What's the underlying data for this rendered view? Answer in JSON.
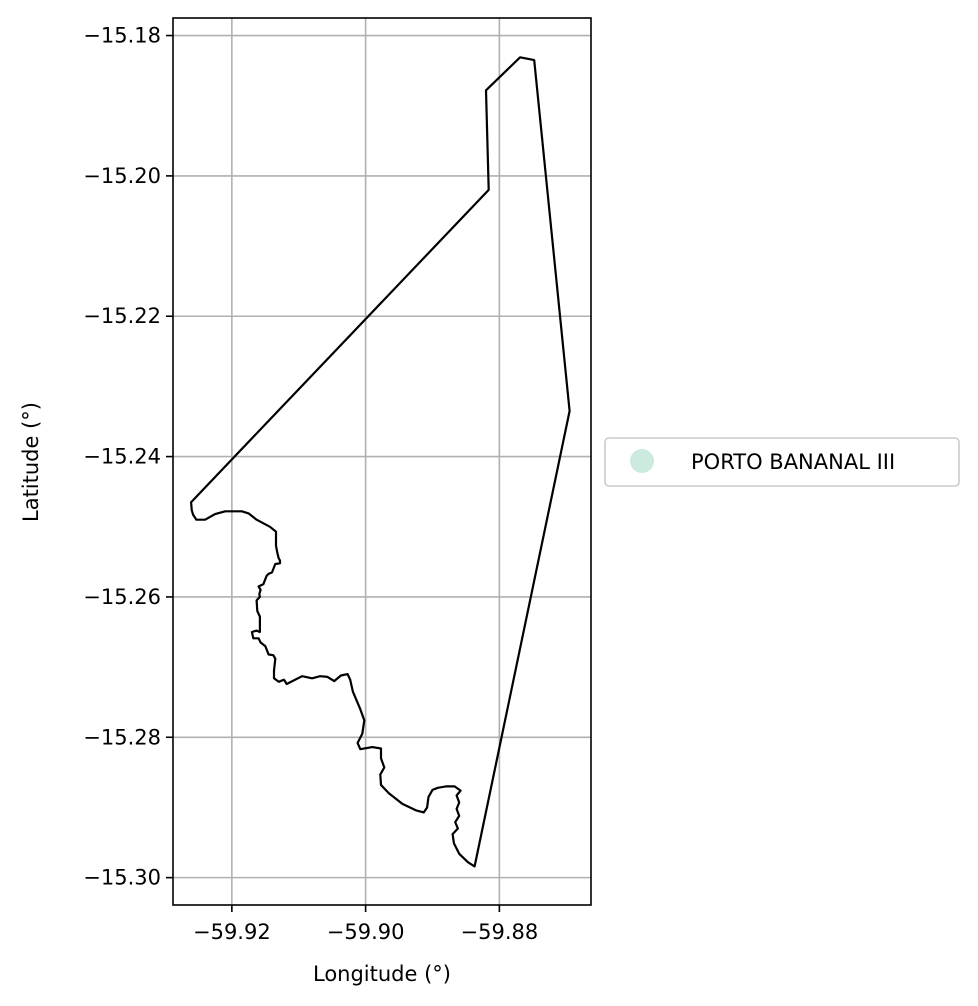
{
  "chart_data": {
    "type": "map",
    "xlabel": "Longitude (°)",
    "ylabel": "Latitude (°)",
    "xlim": [
      -59.9288,
      -59.8663
    ],
    "ylim": [
      -15.3039,
      -15.1775
    ],
    "xticks": [
      -59.92,
      -59.9,
      -59.88
    ],
    "xtick_labels": [
      "−59.92",
      "−59.90",
      "−59.88"
    ],
    "yticks": [
      -15.18,
      -15.2,
      -15.22,
      -15.24,
      -15.26,
      -15.28,
      -15.3
    ],
    "ytick_labels": [
      "−15.18",
      "−15.20",
      "−15.22",
      "−15.24",
      "−15.26",
      "−15.28",
      "−15.30"
    ],
    "grid": true,
    "legend_position": "center-right outside",
    "series": [
      {
        "name": "PORTO BANANAL III",
        "color": "#cdeadf",
        "edge_color": "#000000",
        "polygon": [
          [
            -59.8769,
            -15.1831
          ],
          [
            -59.8748,
            -15.1835
          ],
          [
            -59.8695,
            -15.2335
          ],
          [
            -59.8837,
            -15.2984
          ],
          [
            -59.8847,
            -15.2978
          ],
          [
            -59.886,
            -15.2966
          ],
          [
            -59.8868,
            -15.2951
          ],
          [
            -59.887,
            -15.2938
          ],
          [
            -59.8862,
            -15.293
          ],
          [
            -59.8866,
            -15.2921
          ],
          [
            -59.886,
            -15.2912
          ],
          [
            -59.8864,
            -15.2902
          ],
          [
            -59.886,
            -15.2893
          ],
          [
            -59.8864,
            -15.2883
          ],
          [
            -59.8858,
            -15.2876
          ],
          [
            -59.8867,
            -15.287
          ],
          [
            -59.888,
            -15.287
          ],
          [
            -59.8892,
            -15.2872
          ],
          [
            -59.89,
            -15.2875
          ],
          [
            -59.8906,
            -15.2885
          ],
          [
            -59.8908,
            -15.29
          ],
          [
            -59.8913,
            -15.2907
          ],
          [
            -59.8925,
            -15.2904
          ],
          [
            -59.8945,
            -15.2895
          ],
          [
            -59.8965,
            -15.288
          ],
          [
            -59.8977,
            -15.2868
          ],
          [
            -59.8978,
            -15.2853
          ],
          [
            -59.8972,
            -15.2843
          ],
          [
            -59.8977,
            -15.283
          ],
          [
            -59.8977,
            -15.2816
          ],
          [
            -59.899,
            -15.2814
          ],
          [
            -59.9008,
            -15.2817
          ],
          [
            -59.9012,
            -15.2808
          ],
          [
            -59.9005,
            -15.2795
          ],
          [
            -59.9002,
            -15.2776
          ],
          [
            -59.9008,
            -15.276
          ],
          [
            -59.9019,
            -15.2735
          ],
          [
            -59.9023,
            -15.2718
          ],
          [
            -59.9027,
            -15.271
          ],
          [
            -59.9037,
            -15.2712
          ],
          [
            -59.9047,
            -15.272
          ],
          [
            -59.9057,
            -15.2714
          ],
          [
            -59.9068,
            -15.2713
          ],
          [
            -59.908,
            -15.2716
          ],
          [
            -59.9095,
            -15.2713
          ],
          [
            -59.9118,
            -15.2724
          ],
          [
            -59.9122,
            -15.2718
          ],
          [
            -59.913,
            -15.2721
          ],
          [
            -59.9137,
            -15.2716
          ],
          [
            -59.9137,
            -15.2705
          ],
          [
            -59.9135,
            -15.2688
          ],
          [
            -59.9138,
            -15.2683
          ],
          [
            -59.9145,
            -15.2682
          ],
          [
            -59.915,
            -15.267
          ],
          [
            -59.9157,
            -15.2665
          ],
          [
            -59.916,
            -15.2659
          ],
          [
            -59.9168,
            -15.2659
          ],
          [
            -59.917,
            -15.265
          ],
          [
            -59.9163,
            -15.2648
          ],
          [
            -59.9158,
            -15.265
          ],
          [
            -59.9158,
            -15.2628
          ],
          [
            -59.9162,
            -15.262
          ],
          [
            -59.9163,
            -15.2605
          ],
          [
            -59.9158,
            -15.26
          ],
          [
            -59.9159,
            -15.2596
          ],
          [
            -59.9157,
            -15.259
          ],
          [
            -59.916,
            -15.2585
          ],
          [
            -59.9153,
            -15.2582
          ],
          [
            -59.9148,
            -15.257
          ],
          [
            -59.9145,
            -15.2567
          ],
          [
            -59.914,
            -15.2565
          ],
          [
            -59.9135,
            -15.2553
          ],
          [
            -59.9128,
            -15.2552
          ],
          [
            -59.9128,
            -15.2548
          ],
          [
            -59.913,
            -15.2545
          ],
          [
            -59.9132,
            -15.2537
          ],
          [
            -59.9134,
            -15.2527
          ],
          [
            -59.9134,
            -15.2507
          ],
          [
            -59.9143,
            -15.25
          ],
          [
            -59.9163,
            -15.249
          ],
          [
            -59.9175,
            -15.2481
          ],
          [
            -59.9185,
            -15.2478
          ],
          [
            -59.921,
            -15.2478
          ],
          [
            -59.9225,
            -15.2482
          ],
          [
            -59.924,
            -15.249
          ],
          [
            -59.9253,
            -15.249
          ],
          [
            -59.9258,
            -15.2483
          ],
          [
            -59.926,
            -15.2476
          ],
          [
            -59.9261,
            -15.2465
          ],
          [
            -59.8816,
            -15.202
          ],
          [
            -59.882,
            -15.1878
          ],
          [
            -59.8769,
            -15.1831
          ]
        ]
      }
    ]
  },
  "legend": {
    "items": [
      {
        "label": "PORTO BANANAL III",
        "color": "#cdeadf"
      }
    ]
  }
}
